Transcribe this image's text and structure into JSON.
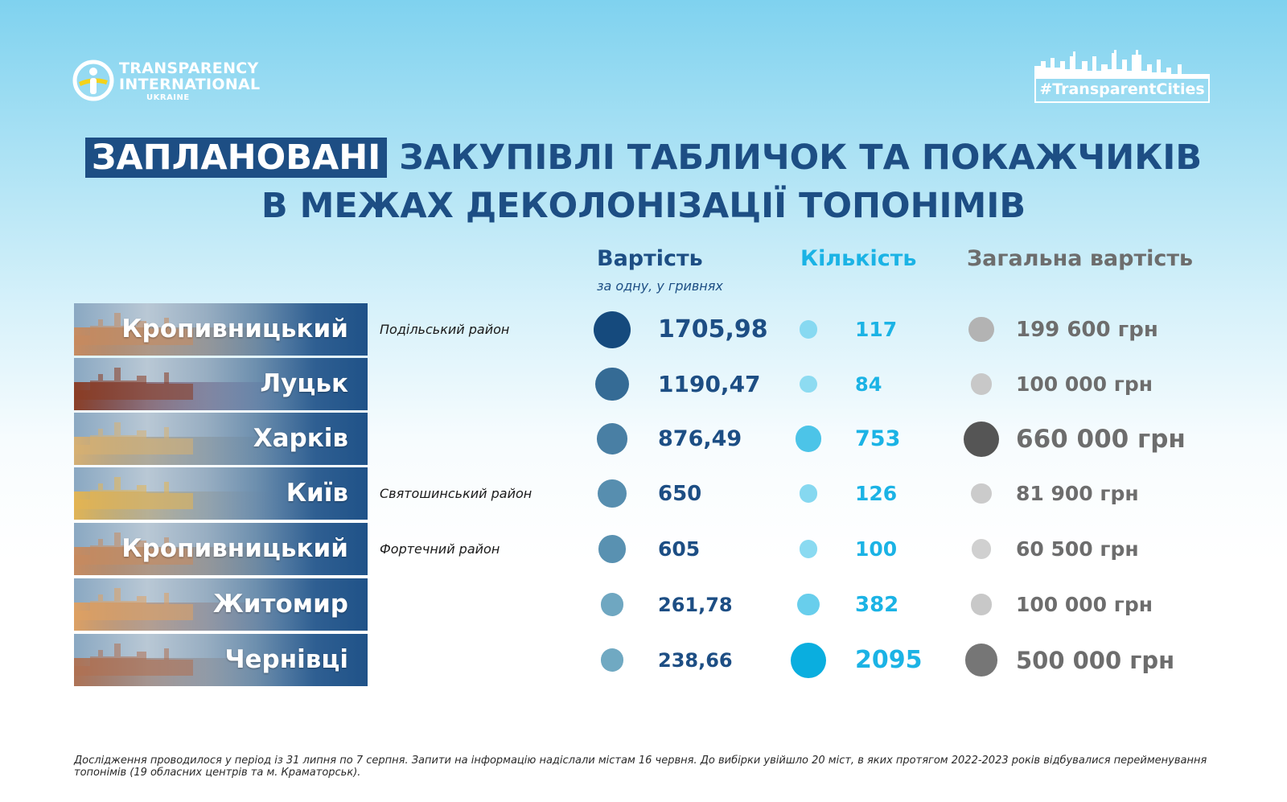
{
  "logo": {
    "line1": "TRANSPARENCY",
    "line2": "INTERNATIONAL",
    "line3": "UKRAINE"
  },
  "hashtag": "#TransparentCities",
  "title": {
    "highlight": "ЗАПЛАНОВАНІ",
    "rest_line1": " ЗАКУПІВЛІ ТАБЛИЧОК ТА ПОКАЖЧИКІВ",
    "line2": "В МЕЖАХ ДЕКОЛОНІЗАЦІЇ ТОПОНІМІВ"
  },
  "headers": {
    "cost": "Вартість",
    "cost_sub": "за одну, у гривнях",
    "qty": "Кількість",
    "total": "Загальна вартість"
  },
  "colors": {
    "cost": "#1d4e84",
    "qty": "#1bb3e5",
    "total": "#6d6d6d"
  },
  "chart_data": {
    "type": "table",
    "columns": [
      "Вартість",
      "Кількість",
      "Загальна вартість"
    ],
    "rows": [
      {
        "city": "Кропивницький",
        "district": "Подільський район",
        "cost_label": "1705,98",
        "cost": 1705.98,
        "qty_label": "117",
        "qty": 117,
        "total_label": "199 600 грн",
        "total": 199600
      },
      {
        "city": "Луцьк",
        "district": "",
        "cost_label": "1190,47",
        "cost": 1190.47,
        "qty_label": "84",
        "qty": 84,
        "total_label": "100 000 грн",
        "total": 100000
      },
      {
        "city": "Харків",
        "district": "",
        "cost_label": "876,49",
        "cost": 876.49,
        "qty_label": "753",
        "qty": 753,
        "total_label": "660 000  грн",
        "total": 660000
      },
      {
        "city": "Київ",
        "district": "Святошинський район",
        "cost_label": "650",
        "cost": 650,
        "qty_label": "126",
        "qty": 126,
        "total_label": "81 900 грн",
        "total": 81900
      },
      {
        "city": "Кропивницький",
        "district": "Фортечний район",
        "cost_label": "605",
        "cost": 605,
        "qty_label": "100",
        "qty": 100,
        "total_label": "60 500 грн",
        "total": 60500
      },
      {
        "city": "Житомир",
        "district": "",
        "cost_label": "261,78",
        "cost": 261.78,
        "qty_label": "382",
        "qty": 382,
        "total_label": "100 000 грн",
        "total": 100000
      },
      {
        "city": "Чернівці",
        "district": "",
        "cost_label": "238,66",
        "cost": 238.66,
        "qty_label": "2095",
        "qty": 2095,
        "total_label": "500 000 грн",
        "total": 500000
      }
    ]
  },
  "footnote": "Дослідження проводилося у період із 31 липня по 7 серпня. Запити на інформацію надіслали містам 16 червня. До вибірки увійшло  20 міст, в яких протягом 2022-2023 років відбувалися перейменування топонімів (19 обласних центрів та м. Краматорськ)."
}
